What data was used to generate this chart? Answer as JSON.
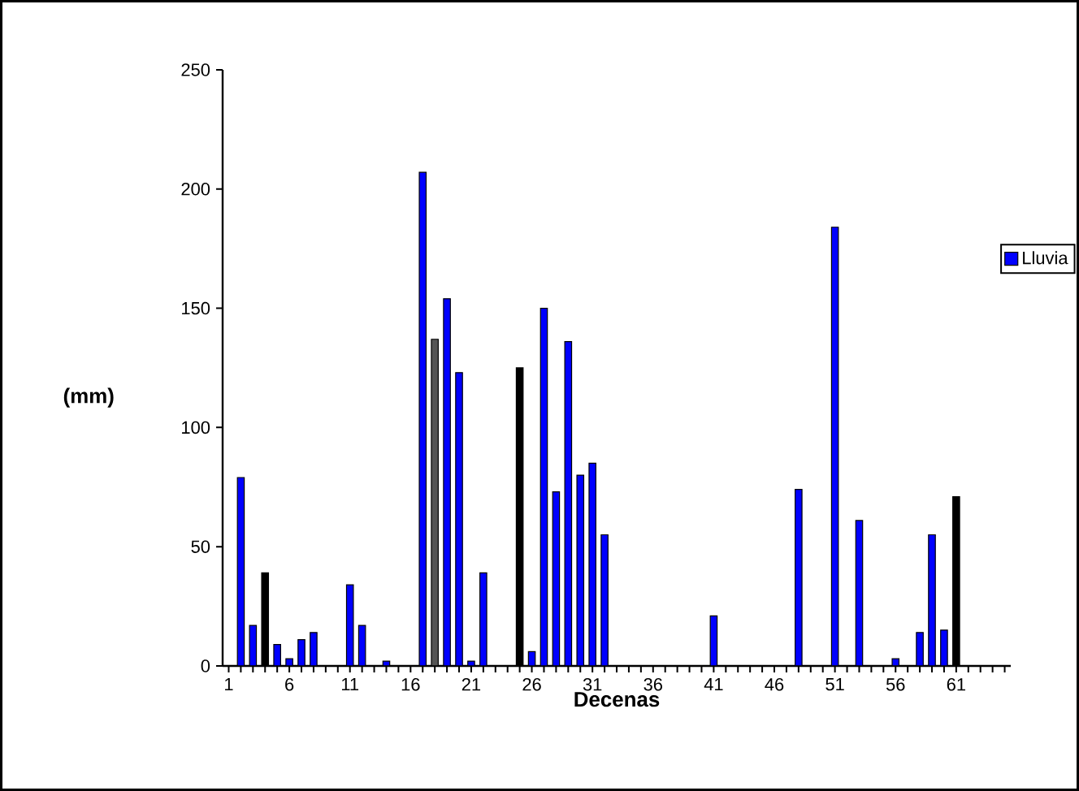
{
  "chart_data": {
    "type": "bar",
    "xlabel": "Decenas",
    "ylabel": "(mm)",
    "categories": [
      "1",
      null,
      null,
      null,
      null,
      "6",
      null,
      null,
      null,
      null,
      "11",
      null,
      null,
      null,
      null,
      "16",
      null,
      null,
      null,
      null,
      "21",
      null,
      null,
      null,
      null,
      "26",
      null,
      null,
      null,
      null,
      "31",
      null,
      null,
      null,
      null,
      "36",
      null,
      null,
      null,
      null,
      "41",
      null,
      null,
      null,
      null,
      "46",
      null,
      null,
      null,
      null,
      "51",
      null,
      null,
      null,
      null,
      "56",
      null,
      null,
      null,
      null,
      "61",
      null,
      null,
      null,
      null
    ],
    "series": [
      {
        "name": "Lluvia",
        "color": "#0000ff",
        "values": [
          0,
          79,
          17,
          39,
          9,
          3,
          11,
          14,
          0,
          0,
          34,
          17,
          0,
          2,
          0,
          0,
          207,
          137,
          154,
          123,
          2,
          39,
          0,
          0,
          125,
          6,
          150,
          73,
          136,
          80,
          85,
          55,
          0,
          0,
          0,
          0,
          0,
          0,
          0,
          0,
          21,
          0,
          0,
          0,
          0,
          0,
          0,
          74,
          0,
          0,
          184,
          0,
          61,
          0,
          0,
          3,
          0,
          14,
          55,
          15,
          71,
          0,
          0,
          0,
          0
        ],
        "colors": [
          "#0000ff",
          "#0000ff",
          "#0000ff",
          "#000000",
          "#0000ff",
          "#0000ff",
          "#0000ff",
          "#0000ff",
          "#0000ff",
          "#0000ff",
          "#0000ff",
          "#0000ff",
          "#0000ff",
          "#0000ff",
          "#0000ff",
          "#0000ff",
          "#0000ff",
          "#555555",
          "#0000ff",
          "#0000ff",
          "#0000ff",
          "#0000ff",
          "#0000ff",
          "#0000ff",
          "#000000",
          "#0000ff",
          "#0000ff",
          "#0000ff",
          "#0000ff",
          "#0000ff",
          "#0000ff",
          "#0000ff",
          "#0000ff",
          "#0000ff",
          "#0000ff",
          "#0000ff",
          "#0000ff",
          "#0000ff",
          "#0000ff",
          "#0000ff",
          "#0000ff",
          "#0000ff",
          "#0000ff",
          "#0000ff",
          "#0000ff",
          "#0000ff",
          "#0000ff",
          "#0000ff",
          "#0000ff",
          "#0000ff",
          "#0000ff",
          "#0000ff",
          "#0000ff",
          "#0000ff",
          "#0000ff",
          "#0000ff",
          "#0000ff",
          "#0000ff",
          "#0000ff",
          "#0000ff",
          "#000000",
          "#0000ff",
          "#0000ff",
          "#0000ff",
          "#0000ff"
        ]
      }
    ],
    "ylim": [
      0,
      250
    ],
    "yticks": [
      0,
      50,
      100,
      150,
      200,
      250
    ],
    "grid": false,
    "legend": "top right"
  }
}
